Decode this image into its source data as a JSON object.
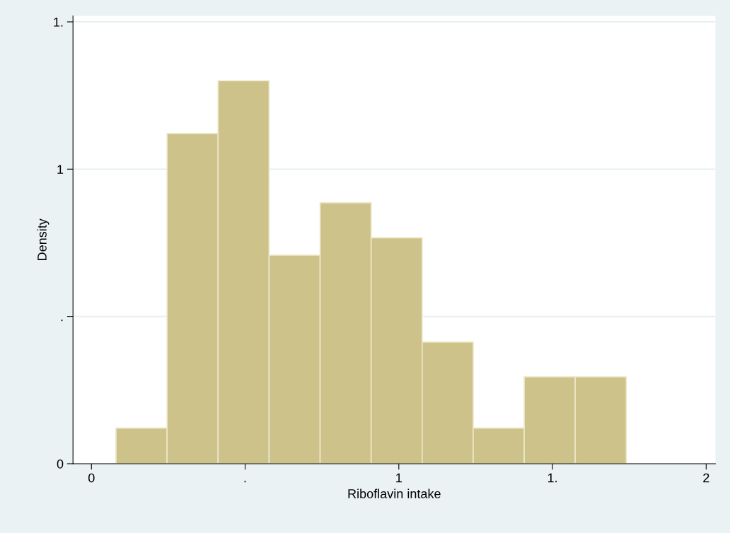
{
  "chart_data": {
    "type": "histogram",
    "xlabel": "Riboflavin intake",
    "ylabel": "Density",
    "bins": [
      0.08,
      0.246,
      0.412,
      0.578,
      0.744,
      0.91,
      1.076,
      1.242,
      1.408,
      1.574,
      1.74
    ],
    "values": [
      0.121,
      1.121,
      1.3,
      0.708,
      0.886,
      0.767,
      0.413,
      0.121,
      0.295,
      0.295
    ],
    "color": "#cdc28a",
    "xlim": [
      -0.06,
      2.03
    ],
    "ylim": [
      0,
      1.52
    ],
    "xticks": [
      0,
      {
        "value": 0.5,
        "label": "."
      },
      1,
      {
        "value": 1.5,
        "label": "1."
      },
      2
    ],
    "yticks": [
      0,
      {
        "value": 0.5,
        "label": "."
      },
      1,
      {
        "value": 1.5,
        "label": "1."
      }
    ],
    "grid": "y"
  }
}
